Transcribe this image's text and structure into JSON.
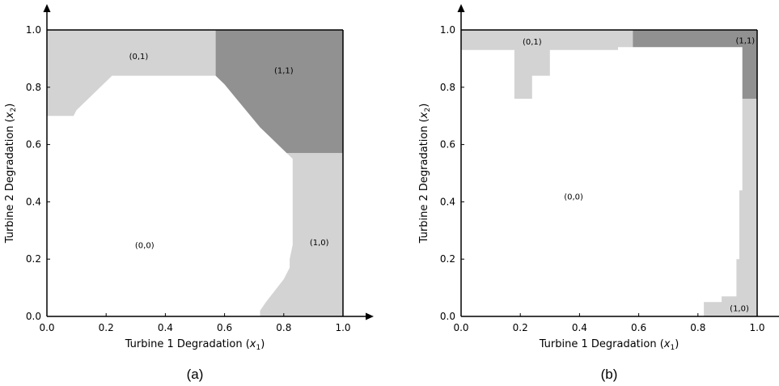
{
  "chart_data": [
    {
      "type": "heatmap",
      "caption": "(a)",
      "xlabel": "Turbine 1 Degradation (",
      "xlabel_sym": "x",
      "xlabel_sub": "1",
      "ylabel": "Turbine 2 Degradation (",
      "ylabel_sym": "x",
      "ylabel_sub": "2",
      "xlim": [
        0,
        1
      ],
      "ylim": [
        0,
        1
      ],
      "xticks": [
        "0.0",
        "0.2",
        "0.4",
        "0.6",
        "0.8",
        "1.0"
      ],
      "yticks": [
        "0.0",
        "0.2",
        "0.4",
        "0.6",
        "0.8",
        "1.0"
      ],
      "colors": {
        "(0,0)": "#ffffff",
        "(0,1)": "#d3d3d3",
        "(1,0)": "#d3d3d3",
        "(1,1)": "#919191"
      },
      "regions": [
        {
          "label": "(0,1)",
          "color": "#d3d3d3",
          "label_at": [
            0.31,
            0.91
          ],
          "polygon": [
            [
              0,
              0.7
            ],
            [
              0.09,
              0.7
            ],
            [
              0.1,
              0.72
            ],
            [
              0.14,
              0.76
            ],
            [
              0.18,
              0.8
            ],
            [
              0.22,
              0.84
            ],
            [
              0.57,
              0.84
            ],
            [
              0.57,
              1.0
            ],
            [
              0,
              1.0
            ]
          ]
        },
        {
          "label": "(1,1)",
          "color": "#919191",
          "label_at": [
            0.8,
            0.86
          ],
          "polygon": [
            [
              0.57,
              1.0
            ],
            [
              0.57,
              0.84
            ],
            [
              0.6,
              0.81
            ],
            [
              0.64,
              0.76
            ],
            [
              0.68,
              0.71
            ],
            [
              0.72,
              0.66
            ],
            [
              0.76,
              0.62
            ],
            [
              0.81,
              0.57
            ],
            [
              1.0,
              0.57
            ],
            [
              1.0,
              1.0
            ]
          ]
        },
        {
          "label": "(1,0)",
          "color": "#d3d3d3",
          "label_at": [
            0.92,
            0.26
          ],
          "polygon": [
            [
              0.81,
              0.57
            ],
            [
              1.0,
              0.57
            ],
            [
              1.0,
              0.0
            ],
            [
              0.72,
              0.0
            ],
            [
              0.72,
              0.02
            ],
            [
              0.74,
              0.05
            ],
            [
              0.77,
              0.09
            ],
            [
              0.8,
              0.13
            ],
            [
              0.82,
              0.17
            ],
            [
              0.82,
              0.2
            ],
            [
              0.83,
              0.25
            ],
            [
              0.83,
              0.55
            ]
          ]
        },
        {
          "label": "(0,0)",
          "color": "#ffffff",
          "label_at": [
            0.33,
            0.25
          ],
          "polygon": []
        }
      ]
    },
    {
      "type": "heatmap",
      "caption": "(b)",
      "xlabel": "Turbine 1 Degradation (",
      "xlabel_sym": "x",
      "xlabel_sub": "1",
      "ylabel": "Turbine 2 Degradation (",
      "ylabel_sym": "x",
      "ylabel_sub": "2",
      "xlim": [
        0,
        1
      ],
      "ylim": [
        0,
        1
      ],
      "xticks": [
        "0.0",
        "0.2",
        "0.4",
        "0.6",
        "0.8",
        "1.0"
      ],
      "yticks": [
        "0.0",
        "0.2",
        "0.4",
        "0.6",
        "0.8",
        "1.0"
      ],
      "colors": {
        "(0,0)": "#ffffff",
        "(0,1)": "#d3d3d3",
        "(1,0)": "#d3d3d3",
        "(1,1)": "#919191"
      },
      "regions": [
        {
          "label": "(0,1)",
          "color": "#d3d3d3",
          "label_at": [
            0.24,
            0.96
          ],
          "polygon": [
            [
              0,
              1.0
            ],
            [
              0.58,
              1.0
            ],
            [
              0.58,
              0.94
            ],
            [
              0.53,
              0.94
            ],
            [
              0.53,
              0.93
            ],
            [
              0.3,
              0.93
            ],
            [
              0.3,
              0.84
            ],
            [
              0.24,
              0.84
            ],
            [
              0.24,
              0.76
            ],
            [
              0.18,
              0.76
            ],
            [
              0.18,
              0.93
            ],
            [
              0,
              0.93
            ]
          ]
        },
        {
          "label": "(1,1)",
          "color": "#919191",
          "label_at": [
            0.96,
            0.965
          ],
          "polygon": [
            [
              0.58,
              1.0
            ],
            [
              1.0,
              1.0
            ],
            [
              1.0,
              0.76
            ],
            [
              0.95,
              0.76
            ],
            [
              0.95,
              0.94
            ],
            [
              0.58,
              0.94
            ]
          ]
        },
        {
          "label": "(1,0)",
          "color": "#d3d3d3",
          "label_at": [
            0.94,
            0.03
          ],
          "polygon": [
            [
              0.95,
              0.76
            ],
            [
              1.0,
              0.76
            ],
            [
              1.0,
              0.0
            ],
            [
              0.82,
              0.0
            ],
            [
              0.82,
              0.05
            ],
            [
              0.88,
              0.05
            ],
            [
              0.88,
              0.07
            ],
            [
              0.93,
              0.07
            ],
            [
              0.93,
              0.2
            ],
            [
              0.94,
              0.2
            ],
            [
              0.94,
              0.44
            ],
            [
              0.95,
              0.44
            ],
            [
              0.95,
              0.76
            ]
          ]
        },
        {
          "label": "(0,0)",
          "color": "#ffffff",
          "label_at": [
            0.38,
            0.42
          ],
          "polygon": []
        }
      ]
    }
  ]
}
